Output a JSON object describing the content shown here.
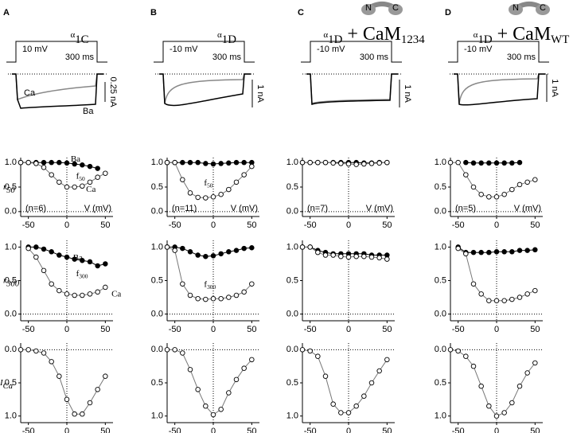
{
  "columns": [
    {
      "letter": "A",
      "title": [
        {
          "text": "α"
        },
        {
          "text": "1C",
          "sub": true
        }
      ],
      "voltage": "10 mV",
      "duration": "300 ms",
      "scale": "0.25 nA",
      "trace_labels": [
        "Ca",
        "Ba"
      ]
    },
    {
      "letter": "B",
      "title": [
        {
          "text": "α"
        },
        {
          "text": "1D",
          "sub": true
        }
      ],
      "voltage": "-10 mV",
      "duration": "300 ms",
      "scale": "1 nA"
    },
    {
      "letter": "C",
      "title": [
        {
          "text": "α"
        },
        {
          "text": "1D",
          "sub": true
        },
        {
          "text": " + CaM"
        },
        {
          "text": "1234",
          "sub": true
        }
      ],
      "voltage": "-10 mV",
      "duration": "300 ms",
      "scale": "1 nA",
      "icon": [
        "N",
        "C"
      ]
    },
    {
      "letter": "D",
      "title": [
        {
          "text": "α"
        },
        {
          "text": "1D",
          "sub": true
        },
        {
          "text": " + CaM"
        },
        {
          "text": "WT",
          "sub": true
        }
      ],
      "voltage": "-10 mV",
      "duration": "300 ms",
      "scale": "1 nA",
      "icon": [
        "N",
        "C"
      ]
    }
  ],
  "chart_data": [
    {
      "type": "scatter",
      "ylabel": [
        {
          "text": "r"
        },
        {
          "text": "50",
          "sub": true
        }
      ],
      "n_label": "(n=6)",
      "xlabel": "V (mV)",
      "annotations": [
        [
          {
            "text": "Ba"
          }
        ],
        [
          {
            "text": "Ca"
          }
        ],
        [
          {
            "text": "f"
          },
          {
            "text": "50",
            "sub": true
          }
        ]
      ],
      "xlim": [
        -60,
        60
      ],
      "ylim": [
        -0.1,
        1.1
      ],
      "xticks": [
        -50,
        0,
        50
      ],
      "yticks": [
        {
          "value": 0,
          "label": "0.0"
        },
        {
          "value": 0.5,
          "label": "0.5"
        },
        {
          "value": 1,
          "label": "1.0"
        }
      ],
      "series": [
        {
          "marker": "filled",
          "x": [
            -60,
            -50,
            -40,
            -30,
            -20,
            -10,
            0,
            10,
            20,
            30,
            40
          ],
          "values": [
            1,
            1,
            1,
            1,
            1,
            1,
            0.99,
            0.97,
            0.95,
            0.92,
            0.88
          ]
        },
        {
          "marker": "open",
          "x": [
            -60,
            -50,
            -40,
            -30,
            -20,
            -10,
            0,
            10,
            20,
            30,
            40,
            50
          ],
          "values": [
            1,
            1,
            0.98,
            0.9,
            0.75,
            0.6,
            0.5,
            0.5,
            0.52,
            0.6,
            0.7,
            0.78
          ]
        }
      ]
    },
    {
      "type": "scatter",
      "ylabel": [
        {
          "text": "r"
        },
        {
          "text": "300",
          "sub": true
        }
      ],
      "annotations": [
        [
          {
            "text": "Ba"
          }
        ],
        [
          {
            "text": "Ca"
          }
        ],
        [
          {
            "text": "f"
          },
          {
            "text": "300",
            "sub": true
          }
        ]
      ],
      "xlim": [
        -60,
        60
      ],
      "ylim": [
        -0.1,
        1.1
      ],
      "xticks": [
        -50,
        0,
        50
      ],
      "yticks": [
        {
          "value": 0,
          "label": "0.0"
        },
        {
          "value": 0.5,
          "label": "0.5"
        },
        {
          "value": 1,
          "label": "1.0"
        }
      ],
      "series": [
        {
          "marker": "filled",
          "x": [
            -50,
            -40,
            -30,
            -20,
            -10,
            0,
            10,
            20,
            30,
            40,
            50
          ],
          "values": [
            1,
            1,
            0.97,
            0.93,
            0.88,
            0.85,
            0.82,
            0.8,
            0.78,
            0.72,
            0.75
          ]
        },
        {
          "marker": "open",
          "x": [
            -50,
            -40,
            -30,
            -20,
            -10,
            0,
            10,
            20,
            30,
            40,
            50
          ],
          "values": [
            0.98,
            0.85,
            0.65,
            0.45,
            0.35,
            0.3,
            0.28,
            0.28,
            0.3,
            0.33,
            0.4
          ]
        }
      ]
    },
    {
      "type": "scatter",
      "ylabel": [
        {
          "text": "I"
        },
        {
          "text": "Ca",
          "sub": true
        }
      ],
      "xlim": [
        -60,
        60
      ],
      "ylim": [
        1.1,
        -0.1
      ],
      "xticks": [
        -50,
        0,
        50
      ],
      "yticks": [
        {
          "value": 0,
          "label": "0.0"
        },
        {
          "value": 0.5,
          "label": "0.5"
        },
        {
          "value": 1,
          "label": "1.0"
        }
      ],
      "series": [
        {
          "marker": "open",
          "x": [
            -60,
            -50,
            -40,
            -30,
            -20,
            -10,
            0,
            10,
            20,
            30,
            40,
            50
          ],
          "values": [
            0,
            0,
            0.02,
            0.05,
            0.18,
            0.4,
            0.75,
            0.97,
            0.97,
            0.8,
            0.6,
            0.4
          ]
        }
      ]
    },
    {
      "type": "scatter",
      "n_label": "(n=11)",
      "xlabel": "V (mV)",
      "annotations": [
        [
          {
            "text": "f"
          },
          {
            "text": "50",
            "sub": true
          }
        ]
      ],
      "xlim": [
        -60,
        60
      ],
      "ylim": [
        -0.1,
        1.1
      ],
      "xticks": [
        -50,
        0,
        50
      ],
      "yticks": [
        {
          "value": 0,
          "label": "0.0"
        },
        {
          "value": 0.5,
          "label": "0.5"
        },
        {
          "value": 1,
          "label": "1.0"
        }
      ],
      "series": [
        {
          "marker": "filled",
          "x": [
            -60,
            -50,
            -40,
            -30,
            -20,
            -10,
            0,
            10,
            20,
            30,
            40,
            50
          ],
          "values": [
            1,
            1,
            1,
            1,
            1,
            0.98,
            0.97,
            0.98,
            0.99,
            1,
            1,
            1
          ]
        },
        {
          "marker": "open",
          "x": [
            -60,
            -50,
            -40,
            -30,
            -20,
            -10,
            0,
            10,
            20,
            30,
            40,
            50
          ],
          "values": [
            1,
            1,
            0.65,
            0.38,
            0.29,
            0.28,
            0.3,
            0.35,
            0.45,
            0.6,
            0.75,
            0.92
          ]
        }
      ]
    },
    {
      "type": "scatter",
      "annotations": [
        [
          {
            "text": "f"
          },
          {
            "text": "300",
            "sub": true
          }
        ]
      ],
      "xlim": [
        -60,
        60
      ],
      "ylim": [
        -0.1,
        1.1
      ],
      "xticks": [
        -50,
        0,
        50
      ],
      "yticks": [
        {
          "value": 0,
          "label": "0.0"
        },
        {
          "value": 0.5,
          "label": "0.5"
        },
        {
          "value": 1,
          "label": "1.0"
        }
      ],
      "series": [
        {
          "marker": "filled",
          "x": [
            -60,
            -50,
            -40,
            -30,
            -20,
            -10,
            0,
            10,
            20,
            30,
            40,
            50
          ],
          "values": [
            1,
            1,
            0.98,
            0.93,
            0.88,
            0.86,
            0.87,
            0.9,
            0.93,
            0.95,
            0.98,
            0.99
          ]
        },
        {
          "marker": "open",
          "x": [
            -60,
            -50,
            -40,
            -30,
            -20,
            -10,
            0,
            10,
            20,
            30,
            40,
            50
          ],
          "values": [
            1,
            0.95,
            0.45,
            0.28,
            0.23,
            0.22,
            0.23,
            0.23,
            0.25,
            0.28,
            0.33,
            0.45
          ]
        }
      ]
    },
    {
      "type": "scatter",
      "xlim": [
        -60,
        60
      ],
      "ylim": [
        1.1,
        -0.1
      ],
      "xticks": [
        -50,
        0,
        50
      ],
      "yticks": [
        {
          "value": 0,
          "label": "0.0"
        },
        {
          "value": 0.5,
          "label": "0.5"
        },
        {
          "value": 1,
          "label": "1.0"
        }
      ],
      "series": [
        {
          "marker": "open",
          "x": [
            -60,
            -50,
            -40,
            -30,
            -20,
            -10,
            0,
            10,
            20,
            30,
            40,
            50
          ],
          "values": [
            0,
            0,
            0.05,
            0.3,
            0.6,
            0.85,
            0.98,
            0.9,
            0.65,
            0.45,
            0.28,
            0.15
          ]
        }
      ]
    },
    {
      "type": "scatter",
      "n_label": "(n=7)",
      "xlabel": "V (mV)",
      "xlim": [
        -60,
        60
      ],
      "ylim": [
        -0.1,
        1.1
      ],
      "xticks": [
        -50,
        0,
        50
      ],
      "yticks": [
        {
          "value": 0,
          "label": "0.0"
        },
        {
          "value": 0.5,
          "label": "0.5"
        },
        {
          "value": 1,
          "label": "1.0"
        }
      ],
      "series": [
        {
          "marker": "filled",
          "x": [
            -60,
            -50,
            -40,
            -30,
            -20,
            -10,
            0,
            10,
            20,
            30,
            40,
            50
          ],
          "values": [
            1,
            1,
            1,
            1,
            1,
            1,
            1,
            1,
            0.99,
            0.99,
            1,
            1
          ]
        },
        {
          "marker": "open",
          "x": [
            -60,
            -50,
            -40,
            -30,
            -20,
            -10,
            0,
            10,
            20,
            30,
            40,
            50
          ],
          "values": [
            1,
            1,
            1,
            1,
            0.99,
            0.98,
            0.97,
            0.96,
            0.97,
            0.98,
            0.99,
            1
          ]
        }
      ]
    },
    {
      "type": "scatter",
      "xlim": [
        -60,
        60
      ],
      "ylim": [
        -0.1,
        1.1
      ],
      "xticks": [
        -50,
        0,
        50
      ],
      "yticks": [
        {
          "value": 0,
          "label": "0.0"
        },
        {
          "value": 0.5,
          "label": "0.5"
        },
        {
          "value": 1,
          "label": "1.0"
        }
      ],
      "series": [
        {
          "marker": "filled",
          "x": [
            -60,
            -50,
            -40,
            -30,
            -20,
            -10,
            0,
            10,
            20,
            30,
            40,
            50
          ],
          "values": [
            1,
            1,
            0.95,
            0.92,
            0.9,
            0.9,
            0.9,
            0.9,
            0.9,
            0.88,
            0.88,
            0.88
          ]
        },
        {
          "marker": "open",
          "x": [
            -60,
            -50,
            -40,
            -30,
            -20,
            -10,
            0,
            10,
            20,
            30,
            40,
            50
          ],
          "values": [
            1,
            1,
            0.92,
            0.88,
            0.88,
            0.86,
            0.85,
            0.86,
            0.86,
            0.85,
            0.84,
            0.82
          ]
        }
      ]
    },
    {
      "type": "scatter",
      "xlim": [
        -60,
        60
      ],
      "ylim": [
        1.1,
        -0.1
      ],
      "xticks": [
        -50,
        0,
        50
      ],
      "yticks": [
        {
          "value": 0,
          "label": "0.0"
        },
        {
          "value": 0.5,
          "label": "0.5"
        },
        {
          "value": 1,
          "label": "1.0"
        }
      ],
      "series": [
        {
          "marker": "open",
          "x": [
            -60,
            -50,
            -40,
            -30,
            -20,
            -10,
            0,
            10,
            20,
            30,
            40,
            50
          ],
          "values": [
            0,
            0.02,
            0.1,
            0.4,
            0.82,
            0.95,
            0.95,
            0.85,
            0.7,
            0.5,
            0.32,
            0.15
          ]
        }
      ]
    },
    {
      "type": "scatter",
      "n_label": "(n=5)",
      "xlabel": "V (mV)",
      "xlim": [
        -60,
        60
      ],
      "ylim": [
        -0.1,
        1.1
      ],
      "xticks": [
        -50,
        0,
        50
      ],
      "yticks": [
        {
          "value": 0,
          "label": "0.0"
        },
        {
          "value": 0.5,
          "label": "0.5"
        },
        {
          "value": 1,
          "label": "1.0"
        }
      ],
      "series": [
        {
          "marker": "filled",
          "x": [
            -40,
            -30,
            -20,
            -10,
            0,
            10,
            20,
            30
          ],
          "values": [
            1,
            0.99,
            0.99,
            0.99,
            0.99,
            0.99,
            0.99,
            1
          ]
        },
        {
          "marker": "open",
          "x": [
            -60,
            -50,
            -40,
            -30,
            -20,
            -10,
            0,
            10,
            20,
            30,
            40,
            50
          ],
          "values": [
            1,
            1,
            0.75,
            0.5,
            0.35,
            0.3,
            0.3,
            0.35,
            0.45,
            0.55,
            0.6,
            0.65
          ]
        }
      ]
    },
    {
      "type": "scatter",
      "xlim": [
        -60,
        60
      ],
      "ylim": [
        -0.1,
        1.1
      ],
      "xticks": [
        -50,
        0,
        50
      ],
      "yticks": [
        {
          "value": 0,
          "label": "0.0"
        },
        {
          "value": 0.5,
          "label": "0.5"
        },
        {
          "value": 1,
          "label": "1.0"
        }
      ],
      "series": [
        {
          "marker": "filled",
          "x": [
            -50,
            -40,
            -30,
            -20,
            -10,
            0,
            10,
            20,
            30,
            40,
            50
          ],
          "values": [
            1,
            0.92,
            0.92,
            0.92,
            0.92,
            0.93,
            0.93,
            0.93,
            0.95,
            0.95,
            0.96
          ]
        },
        {
          "marker": "open",
          "x": [
            -50,
            -40,
            -30,
            -20,
            -10,
            0,
            10,
            20,
            30,
            40,
            50
          ],
          "values": [
            0.98,
            0.9,
            0.45,
            0.3,
            0.2,
            0.2,
            0.2,
            0.22,
            0.25,
            0.3,
            0.35
          ]
        }
      ]
    },
    {
      "type": "scatter",
      "xlim": [
        -60,
        60
      ],
      "ylim": [
        1.1,
        -0.1
      ],
      "xticks": [
        -50,
        0,
        50
      ],
      "yticks": [
        {
          "value": 0,
          "label": "0.0"
        },
        {
          "value": 0.5,
          "label": "0.5"
        },
        {
          "value": 1,
          "label": "1.0"
        }
      ],
      "series": [
        {
          "marker": "open",
          "x": [
            -60,
            -50,
            -40,
            -30,
            -20,
            -10,
            0,
            10,
            20,
            30,
            40,
            50
          ],
          "values": [
            0,
            0.02,
            0.1,
            0.25,
            0.55,
            0.85,
            1,
            0.95,
            0.8,
            0.55,
            0.35,
            0.2
          ]
        }
      ]
    }
  ]
}
